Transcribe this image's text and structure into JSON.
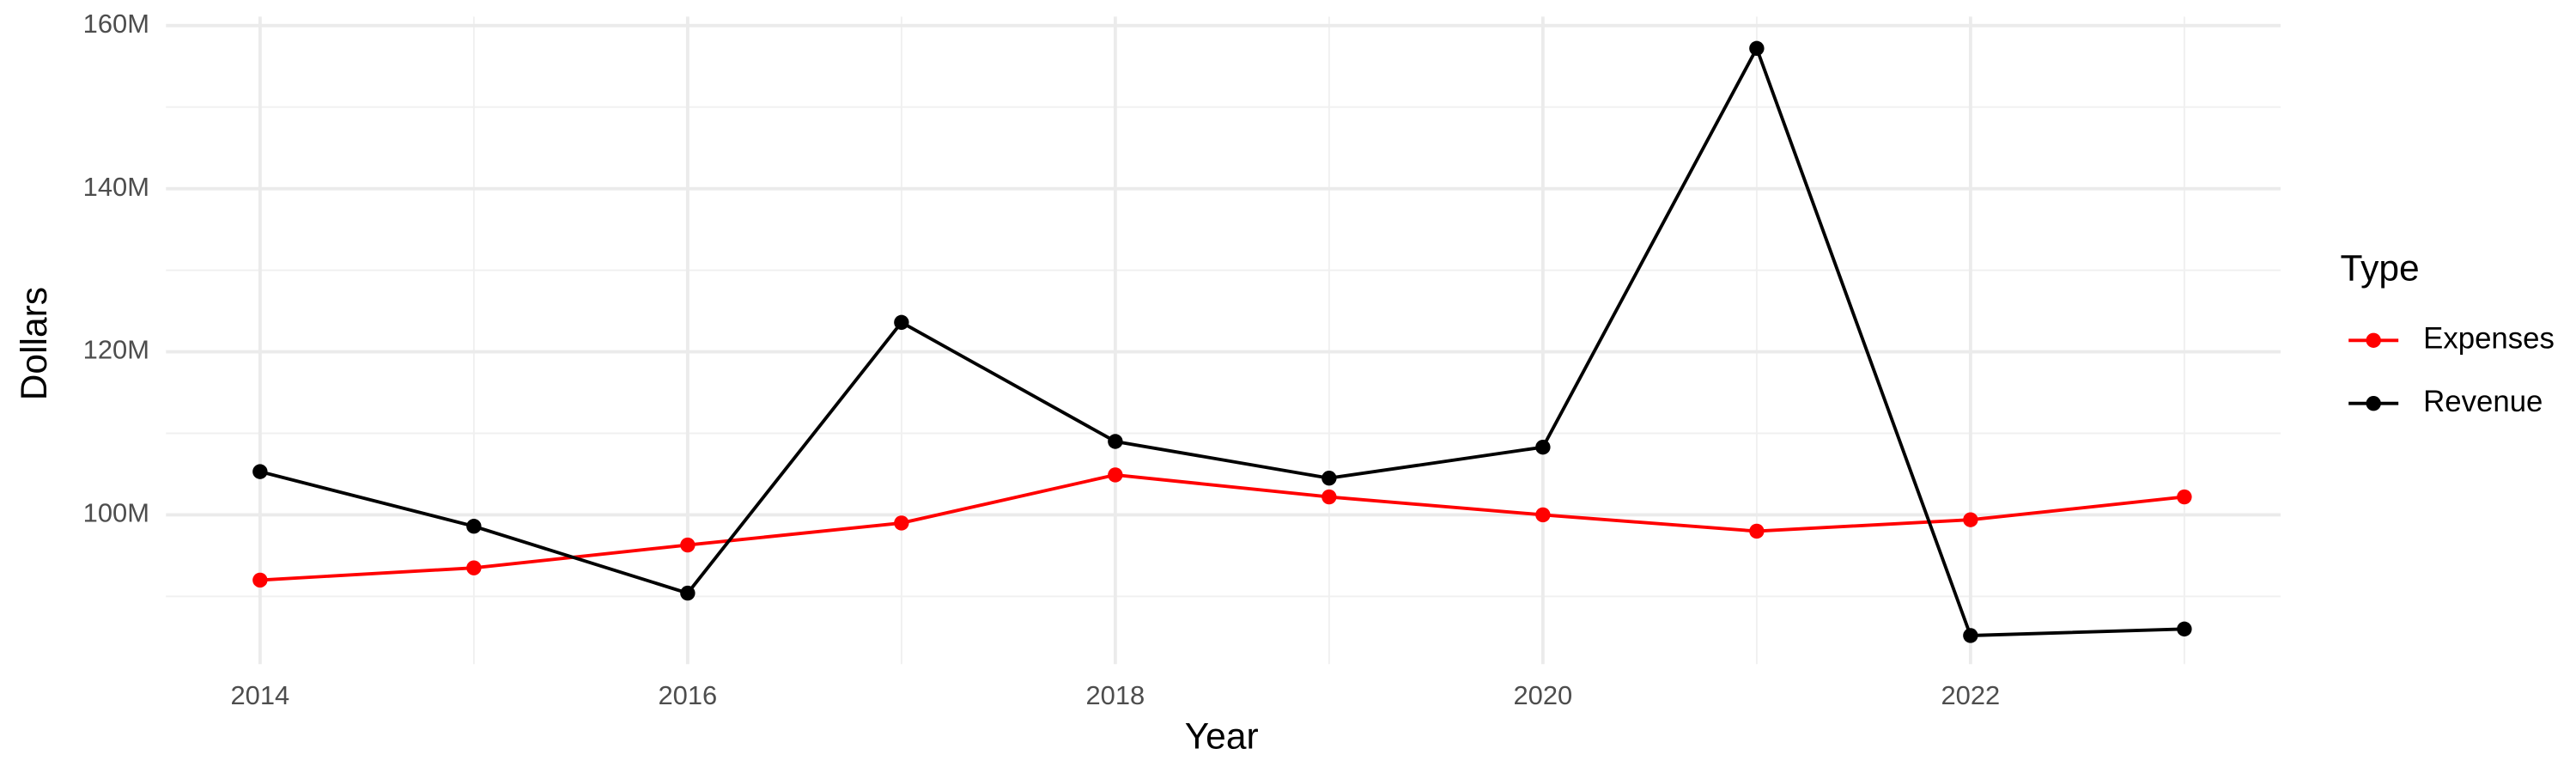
{
  "chart_data": {
    "type": "line",
    "x_label": "Year",
    "y_label": "Dollars",
    "legend_title": "Type",
    "legend_position": "right",
    "grid": true,
    "x": [
      2014,
      2015,
      2016,
      2017,
      2018,
      2019,
      2020,
      2021,
      2022,
      2023
    ],
    "series": [
      {
        "name": "Expenses",
        "color": "#ff0000",
        "values": [
          92000000,
          93500000,
          96300000,
          99000000,
          104900000,
          102200000,
          100000000,
          98000000,
          99400000,
          102200000
        ]
      },
      {
        "name": "Revenue",
        "color": "#000000",
        "values": [
          105300000,
          98600000,
          90400000,
          123600000,
          109000000,
          104500000,
          108300000,
          157200000,
          85200000,
          86000000
        ]
      }
    ],
    "xlim": [
      2013.56,
      2023.45
    ],
    "xticks": [
      2014,
      2016,
      2018,
      2020,
      2022
    ],
    "ylim": [
      81700000,
      161100000
    ],
    "yticks": [
      {
        "value": 100000000,
        "label": "100M"
      },
      {
        "value": 120000000,
        "label": "120M"
      },
      {
        "value": 140000000,
        "label": "140M"
      },
      {
        "value": 160000000,
        "label": "160M"
      }
    ]
  }
}
